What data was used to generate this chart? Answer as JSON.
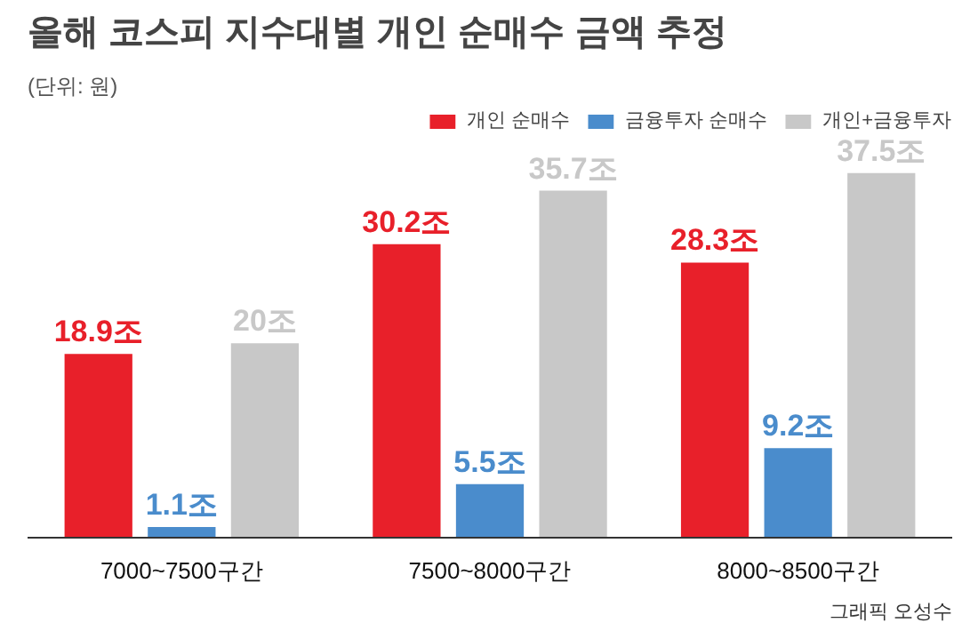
{
  "chart_data": {
    "type": "bar",
    "title": "올해 코스피 지수대별 개인 순매수 금액 추정",
    "subtitle": "(단위: 원)",
    "categories": [
      "7000~7500구간",
      "7500~8000구간",
      "8000~8500구간"
    ],
    "series": [
      {
        "name": "개인 순매수",
        "color": "#e8202a",
        "values": [
          18.9,
          30.2,
          28.3
        ],
        "value_labels": [
          "18.9조",
          "30.2조",
          "28.3조"
        ]
      },
      {
        "name": "금융투자 순매수",
        "color": "#4a8ccc",
        "values": [
          1.1,
          5.5,
          9.2
        ],
        "value_labels": [
          "1.1조",
          "5.5조",
          "9.2조"
        ]
      },
      {
        "name": "개인+금융투자",
        "color": "#c8c8c8",
        "values": [
          20,
          35.7,
          37.5
        ],
        "value_labels": [
          "20조",
          "35.7조",
          "37.5조"
        ]
      }
    ],
    "legend": "top right",
    "grid": false,
    "annotations": [
      "그래픽 오성수"
    ]
  }
}
